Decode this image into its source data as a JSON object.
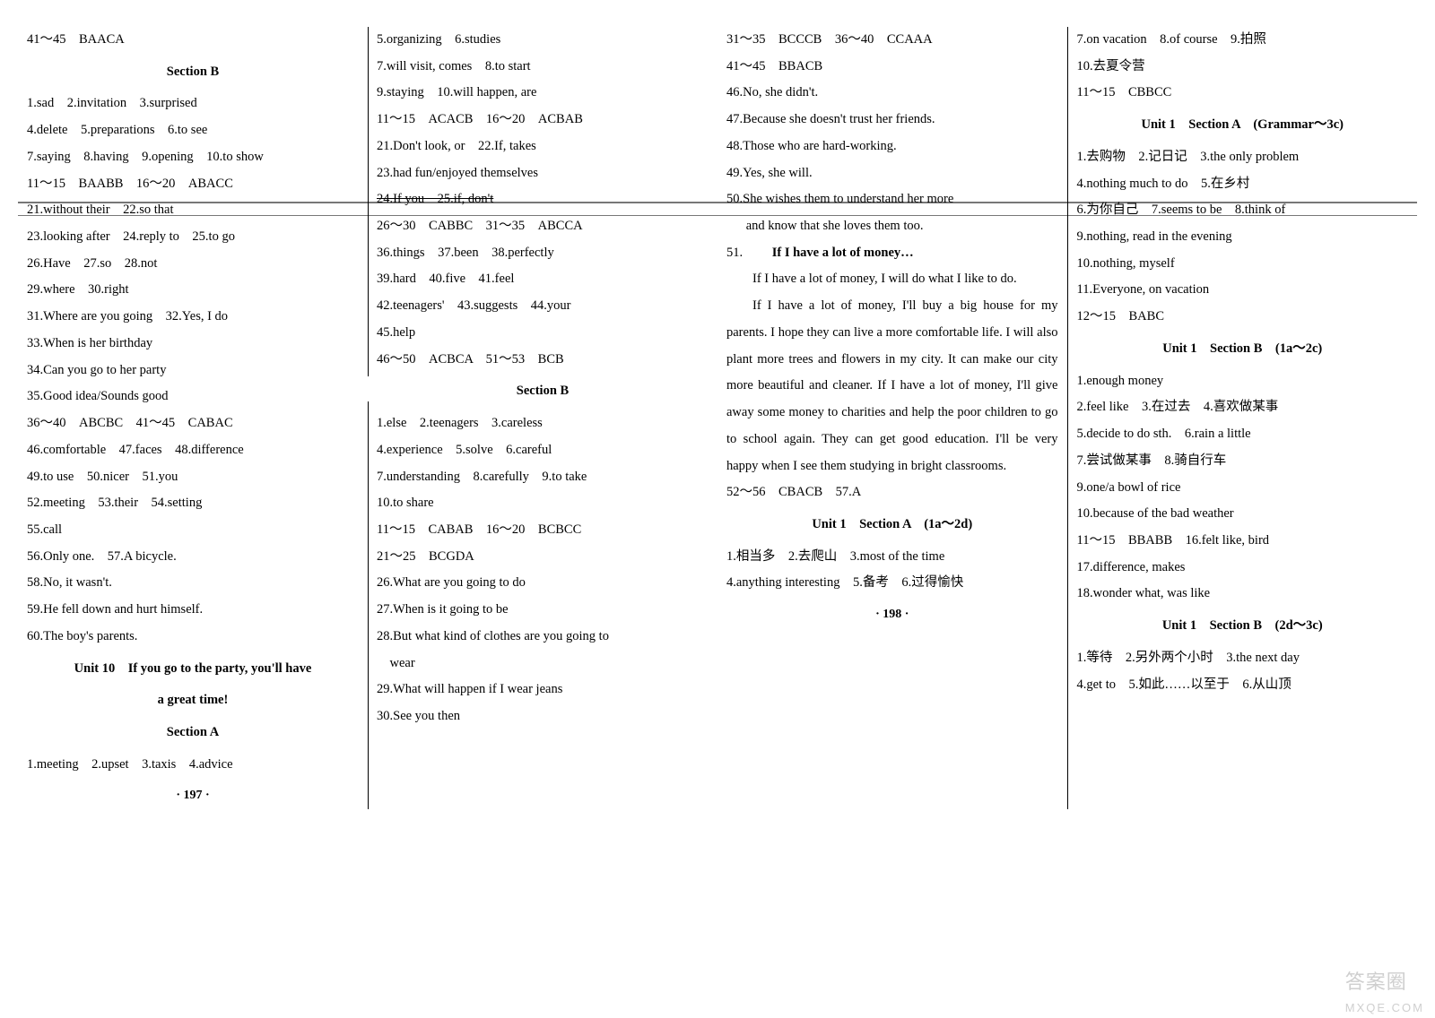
{
  "page_numbers": {
    "left": "· 197 ·",
    "right": "· 198 ·"
  },
  "watermark": {
    "line1": "答案圈",
    "line2": "MXQE.COM"
  },
  "col1": {
    "l1": "41～45　BAACA",
    "h1": "Section B",
    "l2": "1.sad　2.invitation　3.surprised",
    "l3": "4.delete　5.preparations　6.to see",
    "l4": "7.saying　8.having　9.opening　10.to show",
    "l5": "11～15　BAABB　16～20　ABACC",
    "l6": "21.without their　22.so that",
    "l7": "23.looking after　24.reply to　25.to go",
    "l8": "26.Have　27.so　28.not",
    "l9": "29.where　30.right",
    "l10": "31.Where are you going　32.Yes, I do",
    "l11": "33.When is her birthday",
    "l12": "34.Can you go to her party",
    "l13": "35.Good idea/Sounds good",
    "l14": "36～40　ABCBC　41～45　CABAC",
    "l15": "46.comfortable　47.faces　48.difference",
    "l16": "49.to use　50.nicer　51.you",
    "l17": "52.meeting　53.their　54.setting",
    "l18": "55.call",
    "l19": "56.Only one.　57.A bicycle.",
    "l20": "58.No, it wasn't.",
    "l21": "59.He fell down and hurt himself.",
    "l22": "60.The boy's parents.",
    "h2": "Unit 10　If you go to the party, you'll have",
    "h2b": "a great time!",
    "h3": "Section A",
    "l23": "1.meeting　2.upset　3.taxis　4.advice"
  },
  "col2": {
    "l1": "5.organizing　6.studies",
    "l2": "7.will visit, comes　8.to start",
    "l3": "9.staying　10.will happen, are",
    "l4": "11～15　ACACB　16～20　ACBAB",
    "l5": "21.Don't look, or　22.If, takes",
    "l6": "23.had fun/enjoyed themselves",
    "l7": "24.If you　25.if, don't",
    "l8": "26～30　CABBC　31～35　ABCCA",
    "l9": "36.things　37.been　38.perfectly",
    "l10": "39.hard　40.five　41.feel",
    "l11": "42.teenagers'　43.suggests　44.your",
    "l12": "45.help",
    "l13": "46～50　ACBCA　51～53　BCB",
    "h1": "Section B",
    "l14": "1.else　2.teenagers　3.careless",
    "l15": "4.experience　5.solve　6.careful",
    "l16": "7.understanding　8.carefully　9.to take",
    "l17": "10.to share",
    "l18": "11～15　CABAB　16～20　BCBCC",
    "l19": "21～25　BCGDA",
    "l20": "26.What are you going to do",
    "l21": "27.When is it going to be",
    "l22": "28.But what kind of clothes are you going to",
    "l22b": "　wear",
    "l23": "29.What will happen if I wear jeans",
    "l24": "30.See you then"
  },
  "col3": {
    "l1": "31～35　BCCCB　36～40　CCAAA",
    "l2": "41～45　BBACB",
    "l3": "46.No, she didn't.",
    "l4": "47.Because she doesn't trust her friends.",
    "l5": "48.Those who are hard-working.",
    "l6": "49.Yes, she will.",
    "l7": "50.She wishes them to understand her more",
    "l7b": "and know that she loves them too.",
    "l8": "51.",
    "essay_title": "If I have a lot of money…",
    "p1": "If I have a lot of money, I will do what I like to do.",
    "p2": "If I have a lot of money, I'll buy a big house for my parents. I hope they can live a more comfortable life. I will also plant more trees and flowers in my city. It can make our city more beautiful and cleaner. If I have a lot of money, I'll give away some money to charities and help the poor children to go to school again. They can get good education. I'll be very happy when I see them studying in bright classrooms.",
    "l9": "52～56　CBACB　57.A",
    "h1": "Unit 1　Section A　(1a～2d)",
    "l10": "1.相当多　2.去爬山　3.most of the time",
    "l11": "4.anything interesting　5.备考　6.过得愉快"
  },
  "col4": {
    "l1": "7.on vacation　8.of course　9.拍照",
    "l2": "10.去夏令营",
    "l3": "11～15　CBBCC",
    "h1": "Unit 1　Section A　(Grammar～3c)",
    "l4": "1.去购物　2.记日记　3.the only problem",
    "l5": "4.nothing much to do　5.在乡村",
    "l6": "6.为你自己　7.seems to be　8.think of",
    "l7": "9.nothing, read in the evening",
    "l8": "10.nothing, myself",
    "l9": "11.Everyone, on vacation",
    "l10": "12～15　BABC",
    "h2": "Unit 1　Section B　(1a～2c)",
    "l11": "1.enough money",
    "l12": "2.feel like　3.在过去　4.喜欢做某事",
    "l13": "5.decide to do sth.　6.rain a little",
    "l14": "7.尝试做某事　8.骑自行车",
    "l15": "9.one/a bowl of rice",
    "l16": "10.because of the bad weather",
    "l17": "11～15　BBABB　16.felt like, bird",
    "l18": "17.difference, makes",
    "l19": "18.wonder what, was like",
    "h3": "Unit 1　Section B　(2d～3c)",
    "l20": "1.等待　2.另外两个小时　3.the next day",
    "l21": "4.get to　5.如此……以至于　6.从山顶"
  }
}
